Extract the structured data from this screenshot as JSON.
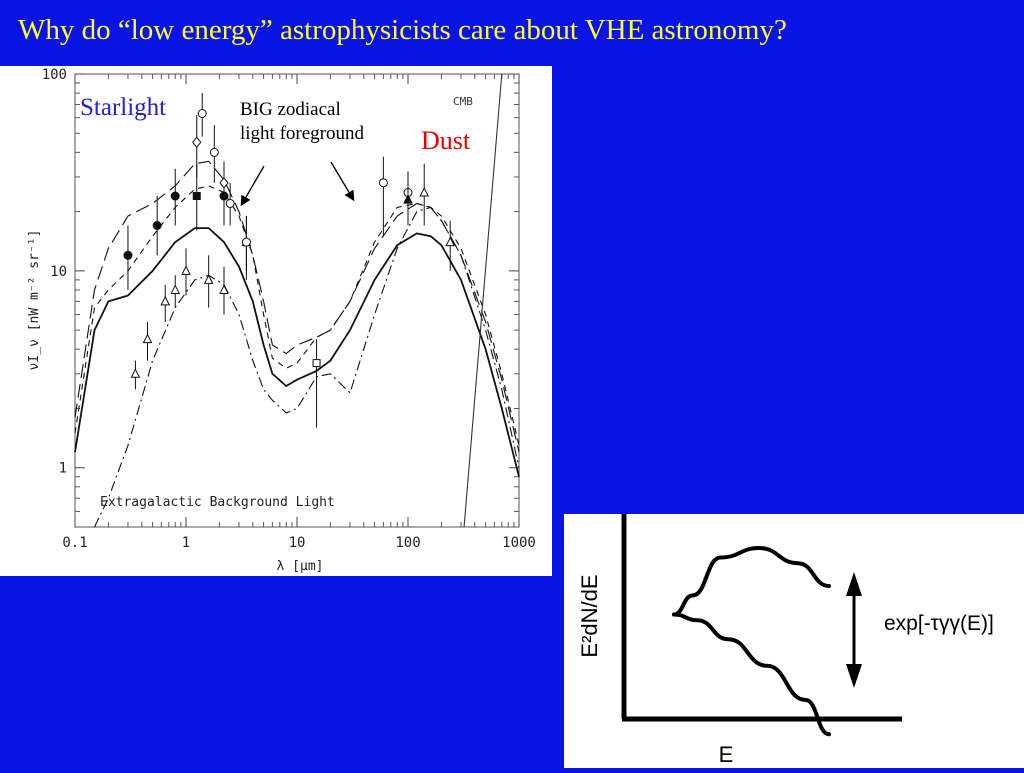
{
  "slide": {
    "title": "Why do “low energy” astrophysicists care about VHE astronomy?",
    "colors": {
      "background": "#0a14e6",
      "title": "#ffff33",
      "starlight": "#2222cc",
      "dust": "#e00000"
    }
  },
  "chart_data": [
    {
      "type": "line",
      "subtype": "log-log spectral energy distribution with data points",
      "plot_label": "Extragalactic Background Light",
      "xlabel": "λ [μm]",
      "ylabel": "νI_ν [nW m⁻² sr⁻¹]",
      "xscale": "log",
      "yscale": "log",
      "xlim": [
        0.1,
        1000
      ],
      "ylim": [
        0.5,
        100
      ],
      "xticks": [
        "0.1",
        "1",
        "10",
        "100",
        "1000"
      ],
      "yticks": [
        "1",
        "10",
        "100"
      ],
      "annotations": {
        "starlight": "Starlight",
        "zodiacal": "BIG zodiacal light foreground",
        "dust": "Dust",
        "cmb": "CMB"
      },
      "series": [
        {
          "style": "solid",
          "x": [
            0.1,
            0.15,
            0.2,
            0.3,
            0.5,
            0.8,
            1.2,
            1.6,
            2.2,
            3,
            4,
            5,
            6,
            8,
            10,
            15,
            20,
            30,
            50,
            80,
            120,
            160,
            200,
            300,
            500,
            700,
            1000
          ],
          "y": [
            1.2,
            5,
            7,
            7.5,
            10,
            14,
            16.5,
            16.5,
            14,
            10.5,
            7,
            4.2,
            3,
            2.6,
            2.8,
            3.1,
            3.5,
            5,
            9,
            13.5,
            15.5,
            15,
            13.5,
            9,
            4,
            2,
            0.9
          ]
        },
        {
          "style": "long-dash",
          "x": [
            0.1,
            0.15,
            0.2,
            0.3,
            0.5,
            0.8,
            1.2,
            1.6,
            2.2,
            3,
            4,
            5,
            6,
            8,
            10,
            15,
            20,
            30,
            50,
            80,
            120,
            160,
            200,
            300,
            500,
            700,
            1000
          ],
          "y": [
            1.8,
            8,
            13,
            19,
            22,
            27,
            35,
            36,
            29,
            20,
            12,
            7,
            4.2,
            3.8,
            4.2,
            4.6,
            5,
            7,
            13,
            19,
            22,
            21,
            18,
            12,
            5.5,
            2.8,
            1.2
          ]
        },
        {
          "style": "short-dash",
          "x": [
            0.1,
            0.15,
            0.2,
            0.3,
            0.5,
            0.8,
            1.2,
            1.6,
            2.2,
            3,
            4,
            5,
            6,
            8,
            10,
            15,
            20,
            30,
            50,
            80,
            120,
            160,
            200,
            300,
            500,
            700,
            1000
          ],
          "y": [
            1.5,
            6.5,
            8,
            10,
            15,
            21,
            26,
            27,
            25,
            19,
            12,
            6,
            3.6,
            3.2,
            3.4,
            4.6,
            5,
            7,
            14,
            21,
            22,
            21,
            19,
            13,
            6,
            3,
            1.3
          ]
        },
        {
          "style": "dash-dot",
          "x": [
            0.15,
            0.2,
            0.3,
            0.5,
            0.8,
            1.2,
            1.6,
            2.2,
            3,
            4,
            5,
            6,
            8,
            10,
            15,
            20,
            30,
            50,
            80,
            120,
            160,
            200,
            300,
            500,
            700,
            1000
          ],
          "y": [
            0.5,
            0.7,
            1.3,
            3.5,
            6.5,
            9,
            9.5,
            8.5,
            6,
            3.5,
            2.5,
            2.2,
            1.9,
            2,
            2.9,
            3,
            2.4,
            6,
            13,
            20,
            21,
            18,
            12,
            5,
            2.5,
            1.0
          ]
        }
      ],
      "points": [
        {
          "x": 0.3,
          "y": 12,
          "lo": 8,
          "hi": 17,
          "marker": "filled-circle"
        },
        {
          "x": 0.55,
          "y": 17,
          "lo": 12,
          "hi": 24,
          "marker": "filled-circle"
        },
        {
          "x": 0.8,
          "y": 24,
          "lo": 17,
          "hi": 33,
          "marker": "filled-circle"
        },
        {
          "x": 1.25,
          "y": 24,
          "lo": 16,
          "hi": 35,
          "marker": "filled-square"
        },
        {
          "x": 2.2,
          "y": 24,
          "lo": 17,
          "hi": 31,
          "marker": "filled-circle"
        },
        {
          "x": 3.5,
          "y": 14,
          "lo": 10,
          "hi": 19,
          "marker": "filled-triangle"
        },
        {
          "x": 1.25,
          "y": 45,
          "lo": 30,
          "hi": 62,
          "marker": "open-diamond"
        },
        {
          "x": 1.4,
          "y": 63,
          "lo": 48,
          "hi": 80,
          "marker": "open-circle"
        },
        {
          "x": 1.8,
          "y": 40,
          "lo": 28,
          "hi": 55,
          "marker": "open-circle"
        },
        {
          "x": 2.2,
          "y": 28,
          "lo": 21,
          "hi": 36,
          "marker": "open-diamond"
        },
        {
          "x": 2.5,
          "y": 22,
          "lo": 17,
          "hi": 28,
          "marker": "open-circle"
        },
        {
          "x": 3.5,
          "y": 14,
          "lo": 9,
          "hi": 19,
          "marker": "open-circle"
        },
        {
          "x": 15,
          "y": 3.4,
          "lo": 1.6,
          "hi": 4.5,
          "marker": "open-square"
        },
        {
          "x": 60,
          "y": 28,
          "lo": 15,
          "hi": 38,
          "marker": "open-circle"
        },
        {
          "x": 100,
          "y": 25,
          "lo": 18,
          "hi": 32,
          "marker": "open-circle"
        },
        {
          "x": 100,
          "y": 23,
          "lo": 17,
          "hi": 30,
          "marker": "filled-triangle"
        },
        {
          "x": 140,
          "y": 25,
          "lo": 17,
          "hi": 35,
          "marker": "open-triangle"
        },
        {
          "x": 240,
          "y": 14,
          "lo": 10,
          "hi": 18,
          "marker": "open-triangle"
        },
        {
          "x": 0.35,
          "y": 3,
          "lo": 2.5,
          "hi": 3.5,
          "marker": "open-triangle"
        },
        {
          "x": 0.45,
          "y": 4.5,
          "lo": 3.5,
          "hi": 5.5,
          "marker": "open-triangle"
        },
        {
          "x": 0.65,
          "y": 7,
          "lo": 5.5,
          "hi": 8.5,
          "marker": "open-triangle"
        },
        {
          "x": 0.8,
          "y": 8,
          "lo": 6.5,
          "hi": 9.5,
          "marker": "open-triangle"
        },
        {
          "x": 1.0,
          "y": 10,
          "lo": 7.5,
          "hi": 13,
          "marker": "open-triangle"
        },
        {
          "x": 1.6,
          "y": 9,
          "lo": 6.5,
          "hi": 12,
          "marker": "open-triangle"
        },
        {
          "x": 2.2,
          "y": 8,
          "lo": 6,
          "hi": 10.5,
          "marker": "open-triangle"
        }
      ],
      "cmb_line": {
        "x": [
          320,
          700
        ],
        "y": [
          0.5,
          100
        ]
      }
    },
    {
      "type": "line",
      "subtype": "schematic spectrum",
      "ylabel": "E²dN/dE",
      "xlabel": "E",
      "annotation": "exp[-τγγ(E)]",
      "series": [
        {
          "name": "intrinsic",
          "x": [
            0.0,
            0.12,
            0.3,
            0.55,
            0.8,
            1.0
          ],
          "y": [
            0.55,
            0.65,
            0.85,
            0.9,
            0.82,
            0.7
          ]
        },
        {
          "name": "absorbed",
          "x": [
            0.0,
            0.15,
            0.35,
            0.6,
            0.85,
            1.0
          ],
          "y": [
            0.55,
            0.52,
            0.42,
            0.28,
            0.1,
            -0.08
          ]
        }
      ]
    }
  ]
}
